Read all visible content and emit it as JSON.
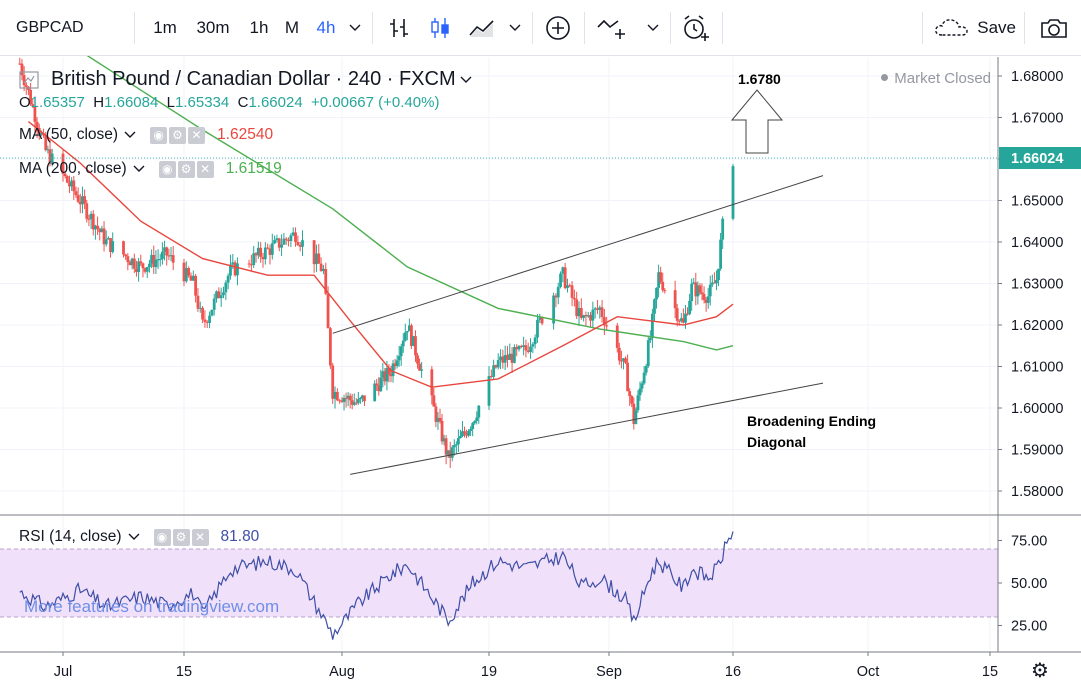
{
  "toolbar": {
    "symbol": "GBPCAD",
    "timeframes": [
      "1m",
      "30m",
      "1h",
      "M",
      "4h"
    ],
    "active_timeframe": "4h",
    "save_label": "Save"
  },
  "legend": {
    "title": "British Pound / Canadian Dollar · 240 · FXCM",
    "open_label": "O",
    "open": "1.65357",
    "high_label": "H",
    "high": "1.66084",
    "low_label": "L",
    "low": "1.65334",
    "close_label": "C",
    "close": "1.66024",
    "change": "+0.00667 (+0.40%)",
    "ma50_name": "MA (50, close)",
    "ma50_value": "1.62540",
    "ma200_name": "MA (200, close)",
    "ma200_value": "1.61519",
    "market_status": "Market Closed"
  },
  "rsi": {
    "name": "RSI (14, close)",
    "value": "81.80"
  },
  "watermark": "More features on tradingview.com",
  "annotations": {
    "target": "1.6780",
    "pattern_line1": "Broadening Ending",
    "pattern_line2": "Diagonal"
  },
  "colors": {
    "up": "#26a69a",
    "down": "#ef5350",
    "ma50": "#e8473e",
    "ma200": "#4caf50",
    "rsi_line": "#3f4fa6",
    "rsi_band": "#f0e0fa",
    "accent": "#2962ff"
  },
  "chart_data": {
    "type": "candlestick",
    "title": "British Pound / Canadian Dollar · 240 · FXCM",
    "ylim": [
      1.577,
      1.686
    ],
    "y_ticks": [
      "1.68000",
      "1.67000",
      "1.66000",
      "1.65000",
      "1.64000",
      "1.63000",
      "1.62000",
      "1.61000",
      "1.60000",
      "1.59000",
      "1.58000"
    ],
    "last_price": "1.66024",
    "x_ticks": [
      "Jul",
      "15",
      "Aug",
      "19",
      "Sep",
      "16",
      "Oct",
      "15"
    ],
    "price_anchors": [
      {
        "date": "2018-06-26",
        "close": 1.683
      },
      {
        "date": "2018-06-29",
        "close": 1.662
      },
      {
        "date": "2018-07-03",
        "close": 1.65
      },
      {
        "date": "2018-07-06",
        "close": 1.64
      },
      {
        "date": "2018-07-10",
        "close": 1.634
      },
      {
        "date": "2018-07-13",
        "close": 1.637
      },
      {
        "date": "2018-07-16",
        "close": 1.63
      },
      {
        "date": "2018-07-17",
        "close": 1.62
      },
      {
        "date": "2018-07-20",
        "close": 1.633
      },
      {
        "date": "2018-07-24",
        "close": 1.638
      },
      {
        "date": "2018-07-27",
        "close": 1.642
      },
      {
        "date": "2018-07-30",
        "close": 1.633
      },
      {
        "date": "2018-07-31",
        "close": 1.604
      },
      {
        "date": "2018-08-03",
        "close": 1.601
      },
      {
        "date": "2018-08-07",
        "close": 1.609
      },
      {
        "date": "2018-08-09",
        "close": 1.62
      },
      {
        "date": "2018-08-13",
        "close": 1.595
      },
      {
        "date": "2018-08-14",
        "close": 1.588
      },
      {
        "date": "2018-08-17",
        "close": 1.597
      },
      {
        "date": "2018-08-20",
        "close": 1.611
      },
      {
        "date": "2018-08-23",
        "close": 1.614
      },
      {
        "date": "2018-08-27",
        "close": 1.632
      },
      {
        "date": "2018-08-29",
        "close": 1.621
      },
      {
        "date": "2018-08-31",
        "close": 1.624
      },
      {
        "date": "2018-09-03",
        "close": 1.609
      },
      {
        "date": "2018-09-04",
        "close": 1.597
      },
      {
        "date": "2018-09-06",
        "close": 1.617
      },
      {
        "date": "2018-09-07",
        "close": 1.632
      },
      {
        "date": "2018-09-10",
        "close": 1.62
      },
      {
        "date": "2018-09-11",
        "close": 1.629
      },
      {
        "date": "2018-09-13",
        "close": 1.627
      },
      {
        "date": "2018-09-14",
        "close": 1.631
      },
      {
        "date": "2018-09-15",
        "close": 1.648
      },
      {
        "date": "2018-09-16",
        "close": 1.66
      }
    ],
    "ma50_points": [
      {
        "date": "2018-06-27",
        "value": 1.669
      },
      {
        "date": "2018-07-03",
        "value": 1.659
      },
      {
        "date": "2018-07-10",
        "value": 1.645
      },
      {
        "date": "2018-07-17",
        "value": 1.636
      },
      {
        "date": "2018-07-24",
        "value": 1.632
      },
      {
        "date": "2018-07-29",
        "value": 1.632
      },
      {
        "date": "2018-08-02",
        "value": 1.621
      },
      {
        "date": "2018-08-07",
        "value": 1.609
      },
      {
        "date": "2018-08-12",
        "value": 1.605
      },
      {
        "date": "2018-08-20",
        "value": 1.607
      },
      {
        "date": "2018-08-27",
        "value": 1.615
      },
      {
        "date": "2018-09-02",
        "value": 1.622
      },
      {
        "date": "2018-09-10",
        "value": 1.62
      },
      {
        "date": "2018-09-14",
        "value": 1.622
      },
      {
        "date": "2018-09-16",
        "value": 1.625
      }
    ],
    "ma200_points": [
      {
        "date": "2018-07-03",
        "value": 1.686
      },
      {
        "date": "2018-07-17",
        "value": 1.667
      },
      {
        "date": "2018-07-31",
        "value": 1.648
      },
      {
        "date": "2018-08-09",
        "value": 1.634
      },
      {
        "date": "2018-08-20",
        "value": 1.624
      },
      {
        "date": "2018-08-31",
        "value": 1.619
      },
      {
        "date": "2018-09-10",
        "value": 1.616
      },
      {
        "date": "2018-09-14",
        "value": 1.614
      },
      {
        "date": "2018-09-16",
        "value": 1.615
      }
    ],
    "upper_trendline": [
      {
        "date": "2018-07-31",
        "value": 1.618
      },
      {
        "date": "2018-09-26",
        "value": 1.656
      }
    ],
    "lower_trendline": [
      {
        "date": "2018-08-02",
        "value": 1.584
      },
      {
        "date": "2018-09-26",
        "value": 1.606
      }
    ],
    "rsi": {
      "ylim": [
        12,
        90
      ],
      "y_ticks": [
        "75.00",
        "50.00",
        "25.00"
      ],
      "band": [
        30,
        70
      ],
      "points": [
        {
          "date": "2018-06-26",
          "value": 45
        },
        {
          "date": "2018-06-29",
          "value": 36
        },
        {
          "date": "2018-07-03",
          "value": 46
        },
        {
          "date": "2018-07-06",
          "value": 36
        },
        {
          "date": "2018-07-10",
          "value": 42
        },
        {
          "date": "2018-07-13",
          "value": 37
        },
        {
          "date": "2018-07-16",
          "value": 44
        },
        {
          "date": "2018-07-17",
          "value": 32
        },
        {
          "date": "2018-07-20",
          "value": 58
        },
        {
          "date": "2018-07-24",
          "value": 63
        },
        {
          "date": "2018-07-27",
          "value": 58
        },
        {
          "date": "2018-07-31",
          "value": 20
        },
        {
          "date": "2018-08-03",
          "value": 38
        },
        {
          "date": "2018-08-07",
          "value": 55
        },
        {
          "date": "2018-08-09",
          "value": 61
        },
        {
          "date": "2018-08-13",
          "value": 35
        },
        {
          "date": "2018-08-14",
          "value": 28
        },
        {
          "date": "2018-08-17",
          "value": 50
        },
        {
          "date": "2018-08-20",
          "value": 63
        },
        {
          "date": "2018-08-23",
          "value": 59
        },
        {
          "date": "2018-08-27",
          "value": 66
        },
        {
          "date": "2018-08-29",
          "value": 48
        },
        {
          "date": "2018-08-31",
          "value": 53
        },
        {
          "date": "2018-09-03",
          "value": 40
        },
        {
          "date": "2018-09-04",
          "value": 27
        },
        {
          "date": "2018-09-06",
          "value": 55
        },
        {
          "date": "2018-09-07",
          "value": 63
        },
        {
          "date": "2018-09-10",
          "value": 47
        },
        {
          "date": "2018-09-11",
          "value": 58
        },
        {
          "date": "2018-09-13",
          "value": 53
        },
        {
          "date": "2018-09-14",
          "value": 58
        },
        {
          "date": "2018-09-15",
          "value": 70
        },
        {
          "date": "2018-09-16",
          "value": 81.8
        }
      ]
    }
  }
}
